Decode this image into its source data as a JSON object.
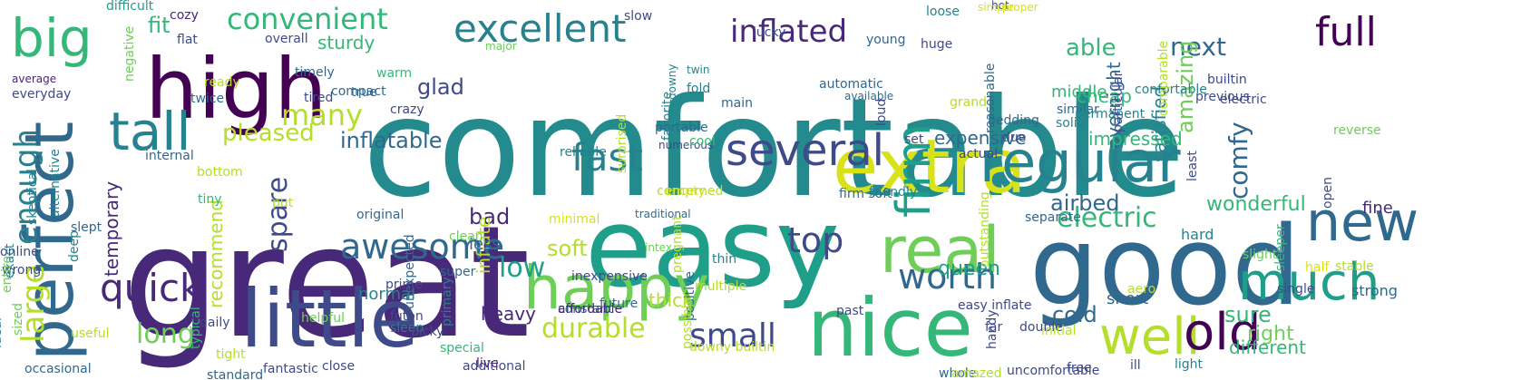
{
  "words": [
    {
      "text": "comfortable",
      "color": "#238a8d"
    },
    {
      "text": "great",
      "color": "#482878"
    },
    {
      "text": "easy",
      "color": "#1f9e89"
    },
    {
      "text": "good",
      "color": "#31688e"
    },
    {
      "text": "high",
      "color": "#440154"
    },
    {
      "text": "little",
      "color": "#3e4a89"
    },
    {
      "text": "happy",
      "color": "#6ece58"
    },
    {
      "text": "nice",
      "color": "#35b779"
    },
    {
      "text": "extra",
      "color": "#d8e219"
    },
    {
      "text": "perfect",
      "color": "#31688e"
    },
    {
      "text": "big",
      "color": "#35b779"
    },
    {
      "text": "tall",
      "color": "#26828e"
    },
    {
      "text": "real",
      "color": "#6ece58"
    },
    {
      "text": "regular",
      "color": "#26828e"
    },
    {
      "text": "well",
      "color": "#b5de2b"
    },
    {
      "text": "much",
      "color": "#1f9e89"
    },
    {
      "text": "old",
      "color": "#440154"
    },
    {
      "text": "new",
      "color": "#31688e"
    },
    {
      "text": "several",
      "color": "#3e4a89"
    },
    {
      "text": "excellent",
      "color": "#26828e"
    },
    {
      "text": "quick",
      "color": "#482878"
    },
    {
      "text": "large",
      "color": "#b5de2b"
    },
    {
      "text": "fast",
      "color": "#26828e"
    },
    {
      "text": "full",
      "color": "#440154"
    },
    {
      "text": "firm",
      "color": "#1f9e89"
    },
    {
      "text": "awesome",
      "color": "#31688e"
    },
    {
      "text": "top",
      "color": "#3e4a89"
    },
    {
      "text": "worth",
      "color": "#31688e"
    },
    {
      "text": "small",
      "color": "#3e4a89"
    },
    {
      "text": "inflated",
      "color": "#482878"
    },
    {
      "text": "convenient",
      "color": "#35b779"
    },
    {
      "text": "enough",
      "color": "#26828e"
    },
    {
      "text": "many",
      "color": "#b5de2b"
    },
    {
      "text": "durable",
      "color": "#b5de2b"
    },
    {
      "text": "electric",
      "color": "#35b779"
    },
    {
      "text": "long",
      "color": "#6ece58"
    },
    {
      "text": "spare",
      "color": "#3e4a89"
    },
    {
      "text": "low",
      "color": "#1f9e89"
    },
    {
      "text": "pleased",
      "color": "#b5de2b"
    },
    {
      "text": "able",
      "color": "#35b779"
    },
    {
      "text": "next",
      "color": "#31688e"
    },
    {
      "text": "comfy",
      "color": "#31688e"
    },
    {
      "text": "amazing",
      "color": "#6ece58"
    },
    {
      "text": "sure",
      "color": "#35b779"
    },
    {
      "text": "inflatable",
      "color": "#31688e"
    },
    {
      "text": "bad",
      "color": "#482878"
    },
    {
      "text": "cold",
      "color": "#31688e"
    },
    {
      "text": "soft",
      "color": "#b5de2b"
    },
    {
      "text": "airbed",
      "color": "#31688e"
    },
    {
      "text": "glad",
      "color": "#3e4a89"
    },
    {
      "text": "fit",
      "color": "#35b779"
    },
    {
      "text": "wonderful",
      "color": "#35b779"
    },
    {
      "text": "right",
      "color": "#6ece58"
    },
    {
      "text": "queen",
      "color": "#1f9e89"
    },
    {
      "text": "heavy",
      "color": "#482878"
    },
    {
      "text": "cheap",
      "color": "#35b779"
    },
    {
      "text": "different",
      "color": "#35b779"
    },
    {
      "text": "sturdy",
      "color": "#35b779"
    },
    {
      "text": "overnight",
      "color": "#31688e"
    },
    {
      "text": "satisfied",
      "color": "#26828e"
    },
    {
      "text": "temporary",
      "color": "#482878"
    },
    {
      "text": "expensive",
      "color": "#31688e"
    },
    {
      "text": "impressed",
      "color": "#35b779"
    },
    {
      "text": "inflate",
      "color": "#b5de2b"
    },
    {
      "text": "recommend",
      "color": "#b5de2b"
    },
    {
      "text": "thick",
      "color": "#b5de2b"
    },
    {
      "text": "normal",
      "color": "#26828e"
    },
    {
      "text": "less",
      "color": "#31688e"
    },
    {
      "text": "middle",
      "color": "#35b779"
    },
    {
      "text": "short",
      "color": "#31688e"
    },
    {
      "text": "fine",
      "color": "#482878"
    },
    {
      "text": "strong",
      "color": "#31688e"
    },
    {
      "text": "hard",
      "color": "#26828e"
    },
    {
      "text": "difficult",
      "color": "#1f9e89"
    },
    {
      "text": "flat",
      "color": "#3e4a89"
    },
    {
      "text": "overall",
      "color": "#3e4a89"
    },
    {
      "text": "timely",
      "color": "#31688e"
    },
    {
      "text": "everyday",
      "color": "#3e4a89"
    },
    {
      "text": "average",
      "color": "#482878"
    },
    {
      "text": "ready",
      "color": "#b5de2b"
    },
    {
      "text": "twice",
      "color": "#31688e"
    },
    {
      "text": "tired",
      "color": "#3e4a89"
    },
    {
      "text": "true",
      "color": "#31688e"
    },
    {
      "text": "warm",
      "color": "#35b779"
    },
    {
      "text": "compact",
      "color": "#31688e"
    },
    {
      "text": "crazy",
      "color": "#3e4a89"
    },
    {
      "text": "twin",
      "color": "#26828e"
    },
    {
      "text": "fold",
      "color": "#26828e"
    },
    {
      "text": "main",
      "color": "#31688e"
    },
    {
      "text": "downy",
      "color": "#26828e"
    },
    {
      "text": "portable",
      "color": "#31688e"
    },
    {
      "text": "numerous",
      "color": "#3e4a89"
    },
    {
      "text": "cool",
      "color": "#35b779"
    },
    {
      "text": "actual",
      "color": "#3e4a89"
    },
    {
      "text": "solid",
      "color": "#26828e"
    },
    {
      "text": "similar",
      "color": "#31688e"
    },
    {
      "text": "loose",
      "color": "#26828e"
    },
    {
      "text": "huge",
      "color": "#3e4a89"
    },
    {
      "text": "young",
      "color": "#31688e"
    },
    {
      "text": "slow",
      "color": "#3e4a89"
    },
    {
      "text": "lucky",
      "color": "#3e4a89"
    },
    {
      "text": "cozy",
      "color": "#482878"
    },
    {
      "text": "major",
      "color": "#6ece58"
    },
    {
      "text": "hot",
      "color": "#3e4a89"
    },
    {
      "text": "proper",
      "color": "#d8e219"
    },
    {
      "text": "simple",
      "color": "#d8e219"
    },
    {
      "text": "internal",
      "color": "#31688e"
    },
    {
      "text": "bottom",
      "color": "#b5de2b"
    },
    {
      "text": "tiny",
      "color": "#35b779"
    },
    {
      "text": "online",
      "color": "#3e4a89"
    },
    {
      "text": "wrong",
      "color": "#3e4a89"
    },
    {
      "text": "skeptical",
      "color": "#26828e"
    },
    {
      "text": "alternative",
      "color": "#26828e"
    },
    {
      "text": "negative",
      "color": "#6ece58"
    },
    {
      "text": "original",
      "color": "#31688e"
    },
    {
      "text": "unexpected",
      "color": "#31688e"
    },
    {
      "text": "put",
      "color": "#b5de2b"
    },
    {
      "text": "daily",
      "color": "#3e4a89"
    },
    {
      "text": "deep",
      "color": "#26828e"
    },
    {
      "text": "exact",
      "color": "#26828e"
    },
    {
      "text": "entire",
      "color": "#6ece58"
    },
    {
      "text": "sized",
      "color": "#6ece58"
    },
    {
      "text": "ideal",
      "color": "#26828e"
    },
    {
      "text": "slept",
      "color": "#31688e"
    },
    {
      "text": "useful",
      "color": "#b5de2b"
    },
    {
      "text": "occasional",
      "color": "#31688e"
    },
    {
      "text": "standard",
      "color": "#31688e"
    },
    {
      "text": "fantastic",
      "color": "#3e4a89"
    },
    {
      "text": "close",
      "color": "#3e4a89"
    },
    {
      "text": "additional",
      "color": "#3e4a89"
    },
    {
      "text": "typical",
      "color": "#35b779"
    },
    {
      "text": "tight",
      "color": "#b5de2b"
    },
    {
      "text": "helpful",
      "color": "#6ece58"
    },
    {
      "text": "prime",
      "color": "#3e4a89"
    },
    {
      "text": "futon",
      "color": "#3e4a89"
    },
    {
      "text": "sleep",
      "color": "#26828e"
    },
    {
      "text": "picky",
      "color": "#3e4a89"
    },
    {
      "text": "special",
      "color": "#35b779"
    },
    {
      "text": "live",
      "color": "#482878"
    },
    {
      "text": "primary",
      "color": "#26828e"
    },
    {
      "text": "super",
      "color": "#31688e"
    },
    {
      "text": "clean",
      "color": "#6ece58"
    },
    {
      "text": "constant",
      "color": "#31688e"
    },
    {
      "text": "affordable",
      "color": "#482878"
    },
    {
      "text": "inexpensive",
      "color": "#3e4a89"
    },
    {
      "text": "future",
      "color": "#31688e"
    },
    {
      "text": "reliable",
      "color": "#26828e"
    },
    {
      "text": "minimal",
      "color": "#d8e219"
    },
    {
      "text": "traditional",
      "color": "#31688e"
    },
    {
      "text": "intex",
      "color": "#6ece58"
    },
    {
      "text": "downy builtin",
      "color": "#b5de2b"
    },
    {
      "text": "multiple",
      "color": "#b5de2b"
    },
    {
      "text": "positive",
      "color": "#31688e"
    },
    {
      "text": "pregnant",
      "color": "#b5de2b"
    },
    {
      "text": "possible",
      "color": "#b5de2b"
    },
    {
      "text": "concerned",
      "color": "#b5de2b"
    },
    {
      "text": "surprised",
      "color": "#b5de2b"
    },
    {
      "text": "favorite",
      "color": "#26828e"
    },
    {
      "text": "empty",
      "color": "#d8e219"
    },
    {
      "text": "thin",
      "color": "#26828e"
    },
    {
      "text": "available",
      "color": "#31688e"
    },
    {
      "text": "automatic",
      "color": "#31688e"
    },
    {
      "text": "loud",
      "color": "#3e4a89"
    },
    {
      "text": "set",
      "color": "#3e4a89"
    },
    {
      "text": "grand",
      "color": "#b5de2b"
    },
    {
      "text": "bedding",
      "color": "#31688e"
    },
    {
      "text": "reasonable",
      "color": "#31688e"
    },
    {
      "text": "due",
      "color": "#3e4a89"
    },
    {
      "text": "firm soft",
      "color": "#31688e"
    },
    {
      "text": "friendly",
      "color": "#26828e"
    },
    {
      "text": "separate",
      "color": "#31688e"
    },
    {
      "text": "easy inflate",
      "color": "#3e4a89"
    },
    {
      "text": "outstanding",
      "color": "#b5de2b"
    },
    {
      "text": "past",
      "color": "#3e4a89"
    },
    {
      "text": "far",
      "color": "#3e4a89"
    },
    {
      "text": "handy",
      "color": "#3e4a89"
    },
    {
      "text": "whole",
      "color": "#31688e"
    },
    {
      "text": "amazed",
      "color": "#b5de2b"
    },
    {
      "text": "double",
      "color": "#3e4a89"
    },
    {
      "text": "initial",
      "color": "#b5de2b"
    },
    {
      "text": "free",
      "color": "#3e4a89"
    },
    {
      "text": "uncomfortable",
      "color": "#3e4a89"
    },
    {
      "text": "ill",
      "color": "#3e4a89"
    },
    {
      "text": "light",
      "color": "#26828e"
    },
    {
      "text": "aero",
      "color": "#b5de2b"
    },
    {
      "text": "single",
      "color": "#3e4a89"
    },
    {
      "text": "half",
      "color": "#d8e219"
    },
    {
      "text": "stable",
      "color": "#b5de2b"
    },
    {
      "text": "slight",
      "color": "#6ece58"
    },
    {
      "text": "sleeper",
      "color": "#35b779"
    },
    {
      "text": "open",
      "color": "#3e4a89"
    },
    {
      "text": "least",
      "color": "#3e4a89"
    },
    {
      "text": "permanent",
      "color": "#26828e"
    },
    {
      "text": "confortable",
      "color": "#26828e"
    },
    {
      "text": "particular",
      "color": "#3e4a89"
    },
    {
      "text": "comparable",
      "color": "#b5de2b"
    },
    {
      "text": "previous",
      "color": "#3e4a89"
    },
    {
      "text": "builtin",
      "color": "#3e4a89"
    },
    {
      "text": "electric",
      "color": "#3e4a89"
    },
    {
      "text": "reverse",
      "color": "#6ece58"
    }
  ]
}
